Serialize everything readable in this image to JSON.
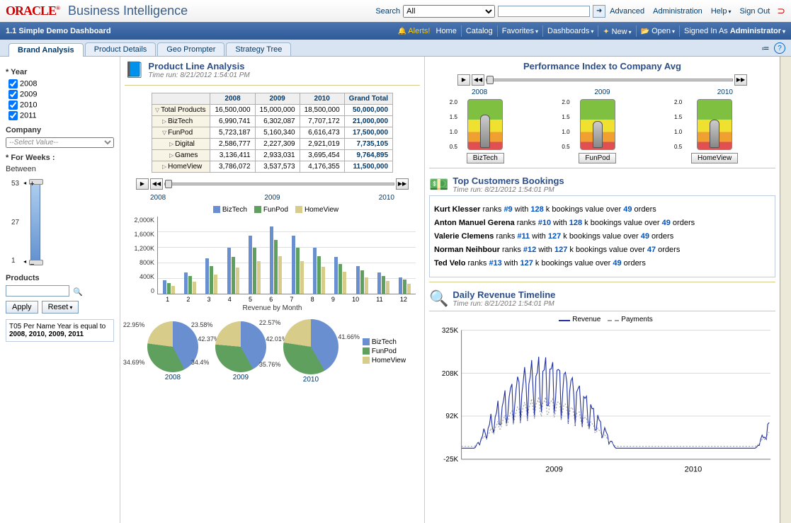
{
  "header": {
    "logo": "ORACLE",
    "app": "Business Intelligence",
    "search_label": "Search",
    "search_scope": "All",
    "links": {
      "advanced": "Advanced",
      "admin": "Administration",
      "help": "Help",
      "signout": "Sign Out"
    }
  },
  "nav": {
    "page_title": "1.1 Simple Demo Dashboard",
    "alerts": "Alerts!",
    "home": "Home",
    "catalog": "Catalog",
    "favorites": "Favorites",
    "dashboards": "Dashboards",
    "new": "New",
    "open": "Open",
    "signed_in_as": "Signed In As",
    "user": "Administrator"
  },
  "tabs": [
    "Brand Analysis",
    "Product Details",
    "Geo Prompter",
    "Strategy Tree"
  ],
  "active_tab": 0,
  "sidebar": {
    "year_label": "* Year",
    "years": [
      "2008",
      "2009",
      "2010",
      "2011"
    ],
    "company_label": "Company",
    "company_placeholder": "--Select Value--",
    "weeks_label": "* For Weeks :",
    "between": "Between",
    "slider_ticks": [
      "53",
      "27",
      "1"
    ],
    "products_label": "Products",
    "apply": "Apply",
    "reset": "Reset",
    "filter_summary_pre": "T05 Per Name Year is equal to ",
    "filter_summary_bold": "2008, 2010, 2009, 2011"
  },
  "product_line": {
    "title": "Product Line Analysis",
    "timerun": "Time run: 8/21/2012 1:54:01 PM",
    "columns": [
      "2008",
      "2009",
      "2010",
      "Grand Total"
    ],
    "rows": [
      {
        "label": "Total Products",
        "vals": [
          "16,500,000",
          "15,000,000",
          "18,500,000",
          "50,000,000"
        ],
        "exp": "d"
      },
      {
        "label": "BizTech",
        "vals": [
          "6,990,741",
          "6,302,087",
          "7,707,172",
          "21,000,000"
        ],
        "exp": "r",
        "indent": 1
      },
      {
        "label": "FunPod",
        "vals": [
          "5,723,187",
          "5,160,340",
          "6,616,473",
          "17,500,000"
        ],
        "exp": "d",
        "indent": 1
      },
      {
        "label": "Digital",
        "vals": [
          "2,586,777",
          "2,227,309",
          "2,921,019",
          "7,735,105"
        ],
        "exp": "r",
        "indent": 2
      },
      {
        "label": "Games",
        "vals": [
          "3,136,411",
          "2,933,031",
          "3,695,454",
          "9,764,895"
        ],
        "exp": "r",
        "indent": 2
      },
      {
        "label": "HomeView",
        "vals": [
          "3,786,072",
          "3,537,573",
          "4,176,355",
          "11,500,000"
        ],
        "exp": "r",
        "indent": 1
      }
    ],
    "slider_years": [
      "2008",
      "2009",
      "2010"
    ],
    "series": [
      {
        "name": "BizTech",
        "color": "#6a8fd0"
      },
      {
        "name": "FunPod",
        "color": "#5fa05f"
      },
      {
        "name": "HomeView",
        "color": "#d8cc8a"
      }
    ],
    "ylabels": [
      "0",
      "400K",
      "800K",
      "1,200K",
      "1,600K",
      "2,000K"
    ],
    "ymax": 2000,
    "months": [
      "1",
      "2",
      "3",
      "4",
      "5",
      "6",
      "7",
      "8",
      "9",
      "10",
      "11",
      "12"
    ],
    "xaxis_title": "Revenue by Month",
    "bar_data": [
      [
        350,
        280,
        200
      ],
      [
        550,
        450,
        320
      ],
      [
        920,
        720,
        500
      ],
      [
        1200,
        950,
        680
      ],
      [
        1500,
        1200,
        850
      ],
      [
        1750,
        1400,
        980
      ],
      [
        1500,
        1200,
        850
      ],
      [
        1200,
        980,
        700
      ],
      [
        950,
        780,
        560
      ],
      [
        720,
        600,
        430
      ],
      [
        550,
        460,
        330
      ],
      [
        420,
        360,
        260
      ]
    ],
    "pies": [
      {
        "year": "2008",
        "biztech": 42.37,
        "funpod": 34.69,
        "homeview": 22.95,
        "size": 72
      },
      {
        "year": "2009",
        "biztech": 42.01,
        "funpod": 34.4,
        "homeview": 23.58,
        "size": 72
      },
      {
        "year": "2010",
        "biztech": 41.66,
        "funpod": 35.76,
        "homeview": 22.57,
        "size": 78
      }
    ]
  },
  "perf": {
    "title": "Performance Index to Company Avg",
    "slider_years": [
      "2008",
      "2009",
      "2010"
    ],
    "ticks": [
      "0.5",
      "1.0",
      "1.5",
      "2.0"
    ],
    "gauges": [
      {
        "label": "BizTech",
        "value": 1.35
      },
      {
        "label": "FunPod",
        "value": 1.1
      },
      {
        "label": "HomeView",
        "value": 1.15
      }
    ]
  },
  "customers": {
    "title": "Top Customers Bookings",
    "timerun": "Time run: 8/21/2012 1:54:01 PM",
    "rows": [
      {
        "name": "Kurt Klesser",
        "rank": "#9",
        "bookings": "128",
        "orders": "49"
      },
      {
        "name": "Anton Manuel Gerena",
        "rank": "#10",
        "bookings": "128",
        "orders": "49"
      },
      {
        "name": "Valerie Clemens",
        "rank": "#11",
        "bookings": "127",
        "orders": "49"
      },
      {
        "name": "Norman Neihbour",
        "rank": "#12",
        "bookings": "127",
        "orders": "47"
      },
      {
        "name": "Ted Velo",
        "rank": "#13",
        "bookings": "127",
        "orders": "49"
      }
    ]
  },
  "timeline": {
    "title": "Daily Revenue Timeline",
    "timerun": "Time run: 8/21/2012 1:54:01 PM",
    "series": [
      {
        "name": "Revenue",
        "color": "#2030a0",
        "style": "solid"
      },
      {
        "name": "Payments",
        "color": "#a0a0a0",
        "style": "dash"
      }
    ],
    "ylabels": [
      "-25K",
      "92K",
      "208K",
      "325K"
    ],
    "xlabels": [
      "2009",
      "2010"
    ],
    "ymin": -25,
    "ymax": 325
  },
  "colors": {
    "biztech": "#6a8fd0",
    "funpod": "#5fa05f",
    "homeview": "#d8cc8a"
  }
}
